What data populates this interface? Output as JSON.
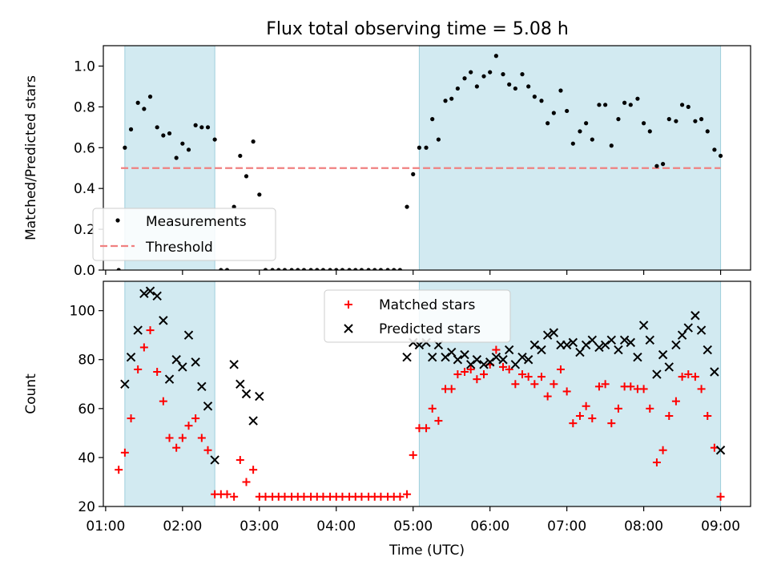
{
  "title": "Flux total observing time = 5.08 h",
  "chart_data": [
    {
      "type": "scatter",
      "ylabel": "Matched/Predicted stars",
      "xlim": [
        0.97,
        9.39
      ],
      "ylim": [
        0,
        1.1
      ],
      "yticks": [
        0.0,
        0.2,
        0.4,
        0.6,
        0.8,
        1.0
      ],
      "ytick_labels": [
        "0.0",
        "0.2",
        "0.4",
        "0.6",
        "0.8",
        "1.0"
      ],
      "shaded_intervals": [
        [
          1.25,
          2.42
        ],
        [
          5.08,
          9.0
        ]
      ],
      "shade_color": "#add8e6",
      "threshold": {
        "value": 0.5,
        "x_range": [
          1.2,
          9.0
        ],
        "color": "#f08080",
        "style": "dashed"
      },
      "legend": {
        "position": "lower-left",
        "items": [
          "Measurements",
          "Threshold"
        ]
      },
      "series": [
        {
          "name": "Measurements",
          "marker": "dot",
          "color": "#000000",
          "points": [
            [
              1.17,
              0.0
            ],
            [
              1.25,
              0.6
            ],
            [
              1.33,
              0.69
            ],
            [
              1.42,
              0.82
            ],
            [
              1.5,
              0.79
            ],
            [
              1.58,
              0.85
            ],
            [
              1.67,
              0.7
            ],
            [
              1.75,
              0.66
            ],
            [
              1.83,
              0.67
            ],
            [
              1.92,
              0.55
            ],
            [
              2.0,
              0.62
            ],
            [
              2.08,
              0.59
            ],
            [
              2.17,
              0.71
            ],
            [
              2.25,
              0.7
            ],
            [
              2.33,
              0.7
            ],
            [
              2.42,
              0.64
            ],
            [
              2.5,
              0.0
            ],
            [
              2.58,
              0.0
            ],
            [
              2.67,
              0.31
            ],
            [
              2.75,
              0.56
            ],
            [
              2.83,
              0.46
            ],
            [
              2.92,
              0.63
            ],
            [
              3.0,
              0.37
            ],
            [
              3.08,
              0.0
            ],
            [
              3.17,
              0.0
            ],
            [
              3.25,
              0.0
            ],
            [
              3.33,
              0.0
            ],
            [
              3.42,
              0.0
            ],
            [
              3.5,
              0.0
            ],
            [
              3.58,
              0.0
            ],
            [
              3.67,
              0.0
            ],
            [
              3.75,
              0.0
            ],
            [
              3.83,
              0.0
            ],
            [
              3.92,
              0.0
            ],
            [
              4.0,
              0.0
            ],
            [
              4.08,
              0.0
            ],
            [
              4.17,
              0.0
            ],
            [
              4.25,
              0.0
            ],
            [
              4.33,
              0.0
            ],
            [
              4.42,
              0.0
            ],
            [
              4.5,
              0.0
            ],
            [
              4.58,
              0.0
            ],
            [
              4.67,
              0.0
            ],
            [
              4.75,
              0.0
            ],
            [
              4.83,
              0.0
            ],
            [
              4.92,
              0.31
            ],
            [
              5.0,
              0.47
            ],
            [
              5.08,
              0.6
            ],
            [
              5.17,
              0.6
            ],
            [
              5.25,
              0.74
            ],
            [
              5.33,
              0.64
            ],
            [
              5.42,
              0.83
            ],
            [
              5.5,
              0.84
            ],
            [
              5.58,
              0.89
            ],
            [
              5.67,
              0.94
            ],
            [
              5.75,
              0.97
            ],
            [
              5.83,
              0.9
            ],
            [
              5.92,
              0.95
            ],
            [
              6.0,
              0.97
            ],
            [
              6.08,
              1.05
            ],
            [
              6.17,
              0.96
            ],
            [
              6.25,
              0.91
            ],
            [
              6.33,
              0.89
            ],
            [
              6.42,
              0.96
            ],
            [
              6.5,
              0.9
            ],
            [
              6.58,
              0.85
            ],
            [
              6.67,
              0.83
            ],
            [
              6.75,
              0.72
            ],
            [
              6.83,
              0.77
            ],
            [
              6.92,
              0.88
            ],
            [
              7.0,
              0.78
            ],
            [
              7.08,
              0.62
            ],
            [
              7.17,
              0.68
            ],
            [
              7.25,
              0.72
            ],
            [
              7.33,
              0.64
            ],
            [
              7.42,
              0.81
            ],
            [
              7.5,
              0.81
            ],
            [
              7.58,
              0.61
            ],
            [
              7.67,
              0.74
            ],
            [
              7.75,
              0.82
            ],
            [
              7.83,
              0.81
            ],
            [
              7.92,
              0.84
            ],
            [
              8.0,
              0.72
            ],
            [
              8.08,
              0.68
            ],
            [
              8.17,
              0.51
            ],
            [
              8.25,
              0.52
            ],
            [
              8.33,
              0.74
            ],
            [
              8.42,
              0.73
            ],
            [
              8.5,
              0.81
            ],
            [
              8.58,
              0.8
            ],
            [
              8.67,
              0.73
            ],
            [
              8.75,
              0.74
            ],
            [
              8.83,
              0.68
            ],
            [
              8.92,
              0.59
            ],
            [
              9.0,
              0.56
            ]
          ]
        }
      ]
    },
    {
      "type": "scatter",
      "xlabel": "Time (UTC)",
      "ylabel": "Count",
      "xlim": [
        0.97,
        9.39
      ],
      "ylim": [
        20,
        112
      ],
      "xticks": [
        1,
        2,
        3,
        4,
        5,
        6,
        7,
        8,
        9
      ],
      "xtick_labels": [
        "01:00",
        "02:00",
        "03:00",
        "04:00",
        "05:00",
        "06:00",
        "07:00",
        "08:00",
        "09:00"
      ],
      "yticks": [
        20,
        40,
        60,
        80,
        100
      ],
      "ytick_labels": [
        "20",
        "40",
        "60",
        "80",
        "100"
      ],
      "shaded_intervals": [
        [
          1.25,
          2.42
        ],
        [
          5.08,
          9.0
        ]
      ],
      "shade_color": "#add8e6",
      "legend": {
        "position": "top-center",
        "items": [
          "Matched stars",
          "Predicted stars"
        ]
      },
      "series": [
        {
          "name": "Matched stars",
          "marker": "plus",
          "color": "#ff0000",
          "points": [
            [
              1.17,
              35
            ],
            [
              1.25,
              42
            ],
            [
              1.33,
              56
            ],
            [
              1.42,
              76
            ],
            [
              1.5,
              85
            ],
            [
              1.58,
              92
            ],
            [
              1.67,
              75
            ],
            [
              1.75,
              63
            ],
            [
              1.83,
              48
            ],
            [
              1.92,
              44
            ],
            [
              2.0,
              48
            ],
            [
              2.08,
              53
            ],
            [
              2.17,
              56
            ],
            [
              2.25,
              48
            ],
            [
              2.33,
              43
            ],
            [
              2.42,
              25
            ],
            [
              2.5,
              25
            ],
            [
              2.58,
              25
            ],
            [
              2.67,
              24
            ],
            [
              2.75,
              39
            ],
            [
              2.83,
              30
            ],
            [
              2.92,
              35
            ],
            [
              3.0,
              24
            ],
            [
              3.08,
              24
            ],
            [
              3.17,
              24
            ],
            [
              3.25,
              24
            ],
            [
              3.33,
              24
            ],
            [
              3.42,
              24
            ],
            [
              3.5,
              24
            ],
            [
              3.58,
              24
            ],
            [
              3.67,
              24
            ],
            [
              3.75,
              24
            ],
            [
              3.83,
              24
            ],
            [
              3.92,
              24
            ],
            [
              4.0,
              24
            ],
            [
              4.08,
              24
            ],
            [
              4.17,
              24
            ],
            [
              4.25,
              24
            ],
            [
              4.33,
              24
            ],
            [
              4.42,
              24
            ],
            [
              4.5,
              24
            ],
            [
              4.58,
              24
            ],
            [
              4.67,
              24
            ],
            [
              4.75,
              24
            ],
            [
              4.83,
              24
            ],
            [
              4.92,
              25
            ],
            [
              5.0,
              41
            ],
            [
              5.08,
              52
            ],
            [
              5.17,
              52
            ],
            [
              5.25,
              60
            ],
            [
              5.33,
              55
            ],
            [
              5.42,
              68
            ],
            [
              5.5,
              68
            ],
            [
              5.58,
              74
            ],
            [
              5.67,
              75
            ],
            [
              5.75,
              76
            ],
            [
              5.83,
              72
            ],
            [
              5.92,
              74
            ],
            [
              6.0,
              78
            ],
            [
              6.08,
              84
            ],
            [
              6.17,
              77
            ],
            [
              6.25,
              76
            ],
            [
              6.33,
              70
            ],
            [
              6.42,
              74
            ],
            [
              6.5,
              73
            ],
            [
              6.58,
              70
            ],
            [
              6.67,
              73
            ],
            [
              6.75,
              65
            ],
            [
              6.83,
              70
            ],
            [
              6.92,
              76
            ],
            [
              7.0,
              67
            ],
            [
              7.08,
              54
            ],
            [
              7.17,
              57
            ],
            [
              7.25,
              61
            ],
            [
              7.33,
              56
            ],
            [
              7.42,
              69
            ],
            [
              7.5,
              70
            ],
            [
              7.58,
              54
            ],
            [
              7.67,
              60
            ],
            [
              7.75,
              69
            ],
            [
              7.83,
              69
            ],
            [
              7.92,
              68
            ],
            [
              8.0,
              68
            ],
            [
              8.08,
              60
            ],
            [
              8.17,
              38
            ],
            [
              8.25,
              43
            ],
            [
              8.33,
              57
            ],
            [
              8.42,
              63
            ],
            [
              8.5,
              73
            ],
            [
              8.58,
              74
            ],
            [
              8.67,
              73
            ],
            [
              8.75,
              68
            ],
            [
              8.83,
              57
            ],
            [
              8.92,
              44
            ],
            [
              9.0,
              24
            ]
          ]
        },
        {
          "name": "Predicted stars",
          "marker": "x",
          "color": "#000000",
          "points": [
            [
              1.25,
              70
            ],
            [
              1.33,
              81
            ],
            [
              1.42,
              92
            ],
            [
              1.5,
              107
            ],
            [
              1.58,
              108
            ],
            [
              1.67,
              106
            ],
            [
              1.75,
              96
            ],
            [
              1.83,
              72
            ],
            [
              1.92,
              80
            ],
            [
              2.0,
              77
            ],
            [
              2.08,
              90
            ],
            [
              2.17,
              79
            ],
            [
              2.25,
              69
            ],
            [
              2.33,
              61
            ],
            [
              2.42,
              39
            ],
            [
              2.67,
              78
            ],
            [
              2.75,
              70
            ],
            [
              2.83,
              66
            ],
            [
              2.92,
              55
            ],
            [
              3.0,
              65
            ],
            [
              4.92,
              81
            ],
            [
              5.0,
              87
            ],
            [
              5.08,
              86
            ],
            [
              5.17,
              87
            ],
            [
              5.25,
              81
            ],
            [
              5.33,
              86
            ],
            [
              5.42,
              81
            ],
            [
              5.5,
              83
            ],
            [
              5.58,
              80
            ],
            [
              5.67,
              82
            ],
            [
              5.75,
              78
            ],
            [
              5.83,
              80
            ],
            [
              5.92,
              78
            ],
            [
              6.0,
              79
            ],
            [
              6.08,
              81
            ],
            [
              6.17,
              80
            ],
            [
              6.25,
              84
            ],
            [
              6.33,
              78
            ],
            [
              6.42,
              81
            ],
            [
              6.5,
              80
            ],
            [
              6.58,
              86
            ],
            [
              6.67,
              84
            ],
            [
              6.75,
              90
            ],
            [
              6.83,
              91
            ],
            [
              6.92,
              86
            ],
            [
              7.0,
              86
            ],
            [
              7.08,
              87
            ],
            [
              7.17,
              83
            ],
            [
              7.25,
              86
            ],
            [
              7.33,
              88
            ],
            [
              7.42,
              85
            ],
            [
              7.5,
              86
            ],
            [
              7.58,
              88
            ],
            [
              7.67,
              84
            ],
            [
              7.75,
              88
            ],
            [
              7.83,
              87
            ],
            [
              7.92,
              81
            ],
            [
              8.0,
              94
            ],
            [
              8.08,
              88
            ],
            [
              8.17,
              74
            ],
            [
              8.25,
              82
            ],
            [
              8.33,
              77
            ],
            [
              8.42,
              86
            ],
            [
              8.5,
              90
            ],
            [
              8.58,
              93
            ],
            [
              8.67,
              98
            ],
            [
              8.75,
              92
            ],
            [
              8.83,
              84
            ],
            [
              8.92,
              75
            ],
            [
              9.0,
              43
            ]
          ]
        }
      ]
    }
  ]
}
